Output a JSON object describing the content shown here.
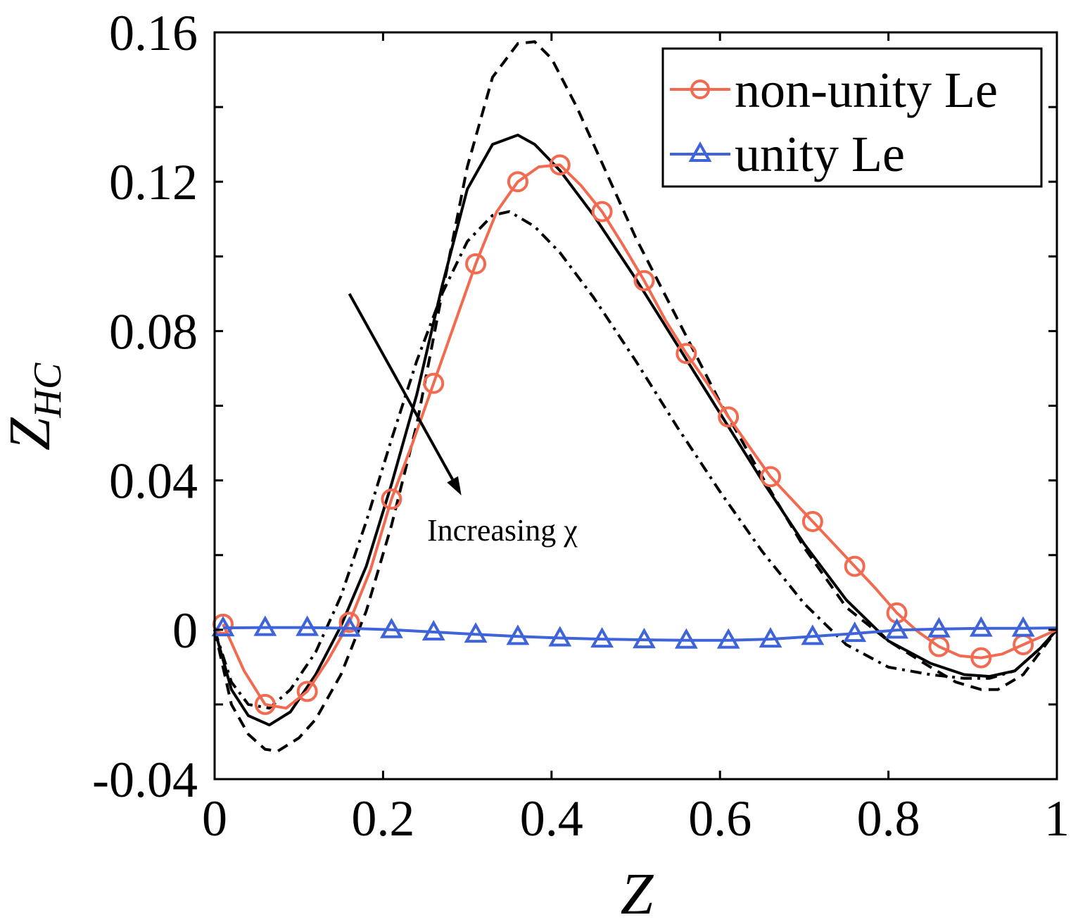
{
  "chart_data": {
    "type": "line",
    "xlabel": "Z",
    "ylabel_main": "Z",
    "ylabel_sub": "HC",
    "xlim": [
      0,
      1
    ],
    "ylim": [
      -0.04,
      0.16
    ],
    "xticks": [
      0,
      0.2,
      0.4,
      0.6,
      0.8,
      1
    ],
    "xtick_labels": [
      "0",
      "0.2",
      "0.4",
      "0.6",
      "0.8",
      "1"
    ],
    "yticks": [
      -0.04,
      0.0,
      0.04,
      0.08,
      0.12,
      0.16
    ],
    "ytick_labels": [
      "-0.04",
      "0",
      "0.04",
      "0.08",
      "0.12",
      "0.16"
    ],
    "yminor": [
      -0.02,
      0.02,
      0.06,
      0.1,
      0.14
    ],
    "legend": {
      "position": "top-right",
      "entries": [
        "non-unity Le",
        "unity Le"
      ]
    },
    "annotation": {
      "text": "Increasing χ",
      "arrow_from": [
        0.16,
        0.09
      ],
      "arrow_to": [
        0.293,
        0.036
      ]
    },
    "series": [
      {
        "name": "dashed",
        "style": "dashed",
        "color": "#000000",
        "marker": "none",
        "x": [
          0,
          0.02,
          0.04,
          0.06,
          0.075,
          0.1,
          0.12,
          0.15,
          0.18,
          0.21,
          0.24,
          0.27,
          0.3,
          0.33,
          0.36,
          0.38,
          0.4,
          0.43,
          0.46,
          0.5,
          0.55,
          0.6,
          0.65,
          0.7,
          0.75,
          0.8,
          0.85,
          0.88,
          0.91,
          0.93,
          0.96,
          0.98,
          1.0
        ],
        "y": [
          0,
          -0.02,
          -0.028,
          -0.032,
          -0.0325,
          -0.029,
          -0.024,
          -0.012,
          0.005,
          0.028,
          0.055,
          0.09,
          0.124,
          0.148,
          0.157,
          0.1575,
          0.153,
          0.14,
          0.125,
          0.105,
          0.083,
          0.061,
          0.041,
          0.022,
          0.006,
          -0.003,
          -0.01,
          -0.014,
          -0.016,
          -0.016,
          -0.012,
          -0.006,
          0
        ]
      },
      {
        "name": "solid",
        "style": "solid",
        "color": "#000000",
        "marker": "none",
        "x": [
          0,
          0.02,
          0.04,
          0.065,
          0.09,
          0.12,
          0.15,
          0.18,
          0.21,
          0.24,
          0.27,
          0.3,
          0.33,
          0.36,
          0.38,
          0.41,
          0.45,
          0.5,
          0.55,
          0.6,
          0.65,
          0.7,
          0.75,
          0.8,
          0.85,
          0.89,
          0.92,
          0.95,
          0.98,
          1.0
        ],
        "y": [
          0,
          -0.016,
          -0.023,
          -0.0255,
          -0.022,
          -0.012,
          0.001,
          0.017,
          0.039,
          0.063,
          0.092,
          0.118,
          0.13,
          0.1325,
          0.13,
          0.123,
          0.111,
          0.094,
          0.076,
          0.058,
          0.04,
          0.023,
          0.008,
          -0.003,
          -0.009,
          -0.012,
          -0.0125,
          -0.011,
          -0.005,
          0
        ]
      },
      {
        "name": "dash-dot",
        "style": "dashdot",
        "color": "#000000",
        "marker": "none",
        "x": [
          0,
          0.02,
          0.04,
          0.065,
          0.09,
          0.12,
          0.15,
          0.18,
          0.21,
          0.24,
          0.27,
          0.3,
          0.33,
          0.35,
          0.38,
          0.41,
          0.45,
          0.5,
          0.55,
          0.6,
          0.65,
          0.7,
          0.75,
          0.8,
          0.85,
          0.89,
          0.92,
          0.95,
          0.98,
          1.0
        ],
        "y": [
          0,
          -0.014,
          -0.02,
          -0.021,
          -0.016,
          -0.006,
          0.009,
          0.029,
          0.051,
          0.072,
          0.09,
          0.104,
          0.111,
          0.112,
          0.108,
          0.101,
          0.089,
          0.072,
          0.054,
          0.037,
          0.021,
          0.007,
          -0.004,
          -0.01,
          -0.012,
          -0.013,
          -0.013,
          -0.011,
          -0.005,
          0
        ]
      },
      {
        "name": "non-unity Le",
        "style": "solid",
        "color": "#F26B50",
        "marker": "circle",
        "x": [
          0.01,
          0.035,
          0.06,
          0.085,
          0.11,
          0.135,
          0.16,
          0.185,
          0.21,
          0.235,
          0.26,
          0.285,
          0.31,
          0.335,
          0.36,
          0.385,
          0.41,
          0.435,
          0.46,
          0.485,
          0.51,
          0.535,
          0.56,
          0.585,
          0.61,
          0.635,
          0.66,
          0.685,
          0.71,
          0.735,
          0.76,
          0.785,
          0.81,
          0.835,
          0.86,
          0.885,
          0.91,
          0.935,
          0.96,
          0.98,
          1.0
        ],
        "y": [
          0.0015,
          -0.011,
          -0.02,
          -0.021,
          -0.0165,
          -0.008,
          0.002,
          0.016,
          0.035,
          0.05,
          0.066,
          0.082,
          0.098,
          0.112,
          0.12,
          0.124,
          0.1245,
          0.119,
          0.112,
          0.103,
          0.0935,
          0.083,
          0.074,
          0.066,
          0.057,
          0.049,
          0.041,
          0.035,
          0.029,
          0.023,
          0.017,
          0.011,
          0.0045,
          -0.0005,
          -0.0045,
          -0.007,
          -0.0075,
          -0.0065,
          -0.004,
          -0.002,
          0
        ],
        "marker_x": [
          0.01,
          0.06,
          0.11,
          0.16,
          0.21,
          0.26,
          0.31,
          0.36,
          0.41,
          0.46,
          0.51,
          0.56,
          0.61,
          0.66,
          0.71,
          0.76,
          0.81,
          0.86,
          0.91,
          0.96
        ],
        "marker_y": [
          0.0015,
          -0.02,
          -0.0165,
          0.002,
          0.035,
          0.066,
          0.098,
          0.12,
          0.1245,
          0.112,
          0.0935,
          0.074,
          0.057,
          0.041,
          0.029,
          0.017,
          0.0045,
          -0.0045,
          -0.0075,
          -0.004
        ]
      },
      {
        "name": "unity Le",
        "style": "solid",
        "color": "#3F63D8",
        "marker": "triangle",
        "x": [
          0.01,
          0.06,
          0.11,
          0.16,
          0.21,
          0.26,
          0.31,
          0.36,
          0.41,
          0.46,
          0.51,
          0.56,
          0.61,
          0.66,
          0.71,
          0.76,
          0.81,
          0.86,
          0.91,
          0.96,
          1.0
        ],
        "y": [
          0.0005,
          0.0006,
          0.0006,
          0.0004,
          0.0,
          -0.0006,
          -0.0012,
          -0.0018,
          -0.0022,
          -0.0025,
          -0.0027,
          -0.0028,
          -0.0028,
          -0.0025,
          -0.0018,
          -0.001,
          -0.0001,
          0.0002,
          0.0004,
          0.0004,
          0.0005
        ],
        "marker_x": [
          0.01,
          0.06,
          0.11,
          0.16,
          0.21,
          0.26,
          0.31,
          0.36,
          0.41,
          0.46,
          0.51,
          0.56,
          0.61,
          0.66,
          0.71,
          0.76,
          0.81,
          0.86,
          0.91,
          0.96
        ],
        "marker_y": [
          0.0005,
          0.0006,
          0.0006,
          0.0004,
          0.0,
          -0.0006,
          -0.0012,
          -0.0018,
          -0.0022,
          -0.0025,
          -0.0027,
          -0.0028,
          -0.0028,
          -0.0025,
          -0.0018,
          -0.001,
          -0.0001,
          0.0002,
          0.0004,
          0.0004
        ]
      }
    ]
  }
}
